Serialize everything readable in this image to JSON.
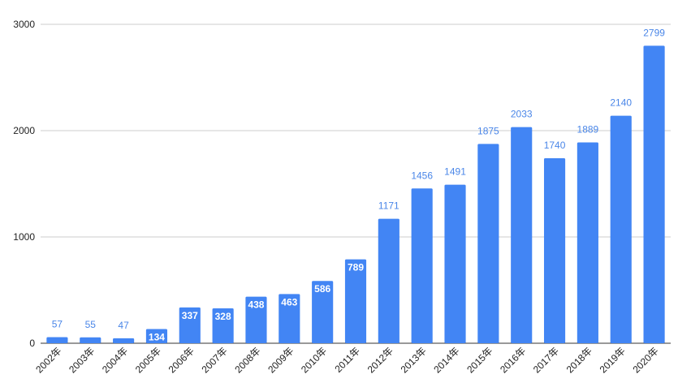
{
  "chart_data": {
    "type": "bar",
    "categories": [
      "2002年",
      "2003年",
      "2004年",
      "2005年",
      "2006年",
      "2007年",
      "2008年",
      "2009年",
      "2010年",
      "2011年",
      "2012年",
      "2013年",
      "2014年",
      "2015年",
      "2016年",
      "2017年",
      "2018年",
      "2019年",
      "2020年"
    ],
    "series": [
      {
        "values": [
          57,
          55,
          47,
          134,
          337,
          328,
          438,
          463,
          586,
          789,
          1171,
          1456,
          1491,
          1875,
          2033,
          1740,
          1889,
          2140,
          2799
        ]
      }
    ],
    "title": "",
    "xlabel": "",
    "ylabel": "",
    "ylim": [
      0,
      3000
    ],
    "yticks": [
      0,
      1000,
      2000,
      3000
    ],
    "grid": true,
    "legend": "none",
    "bar_color": "#4285f4",
    "outside_label_color": "#4a86e8",
    "inside_label_color": "#ffffff"
  }
}
